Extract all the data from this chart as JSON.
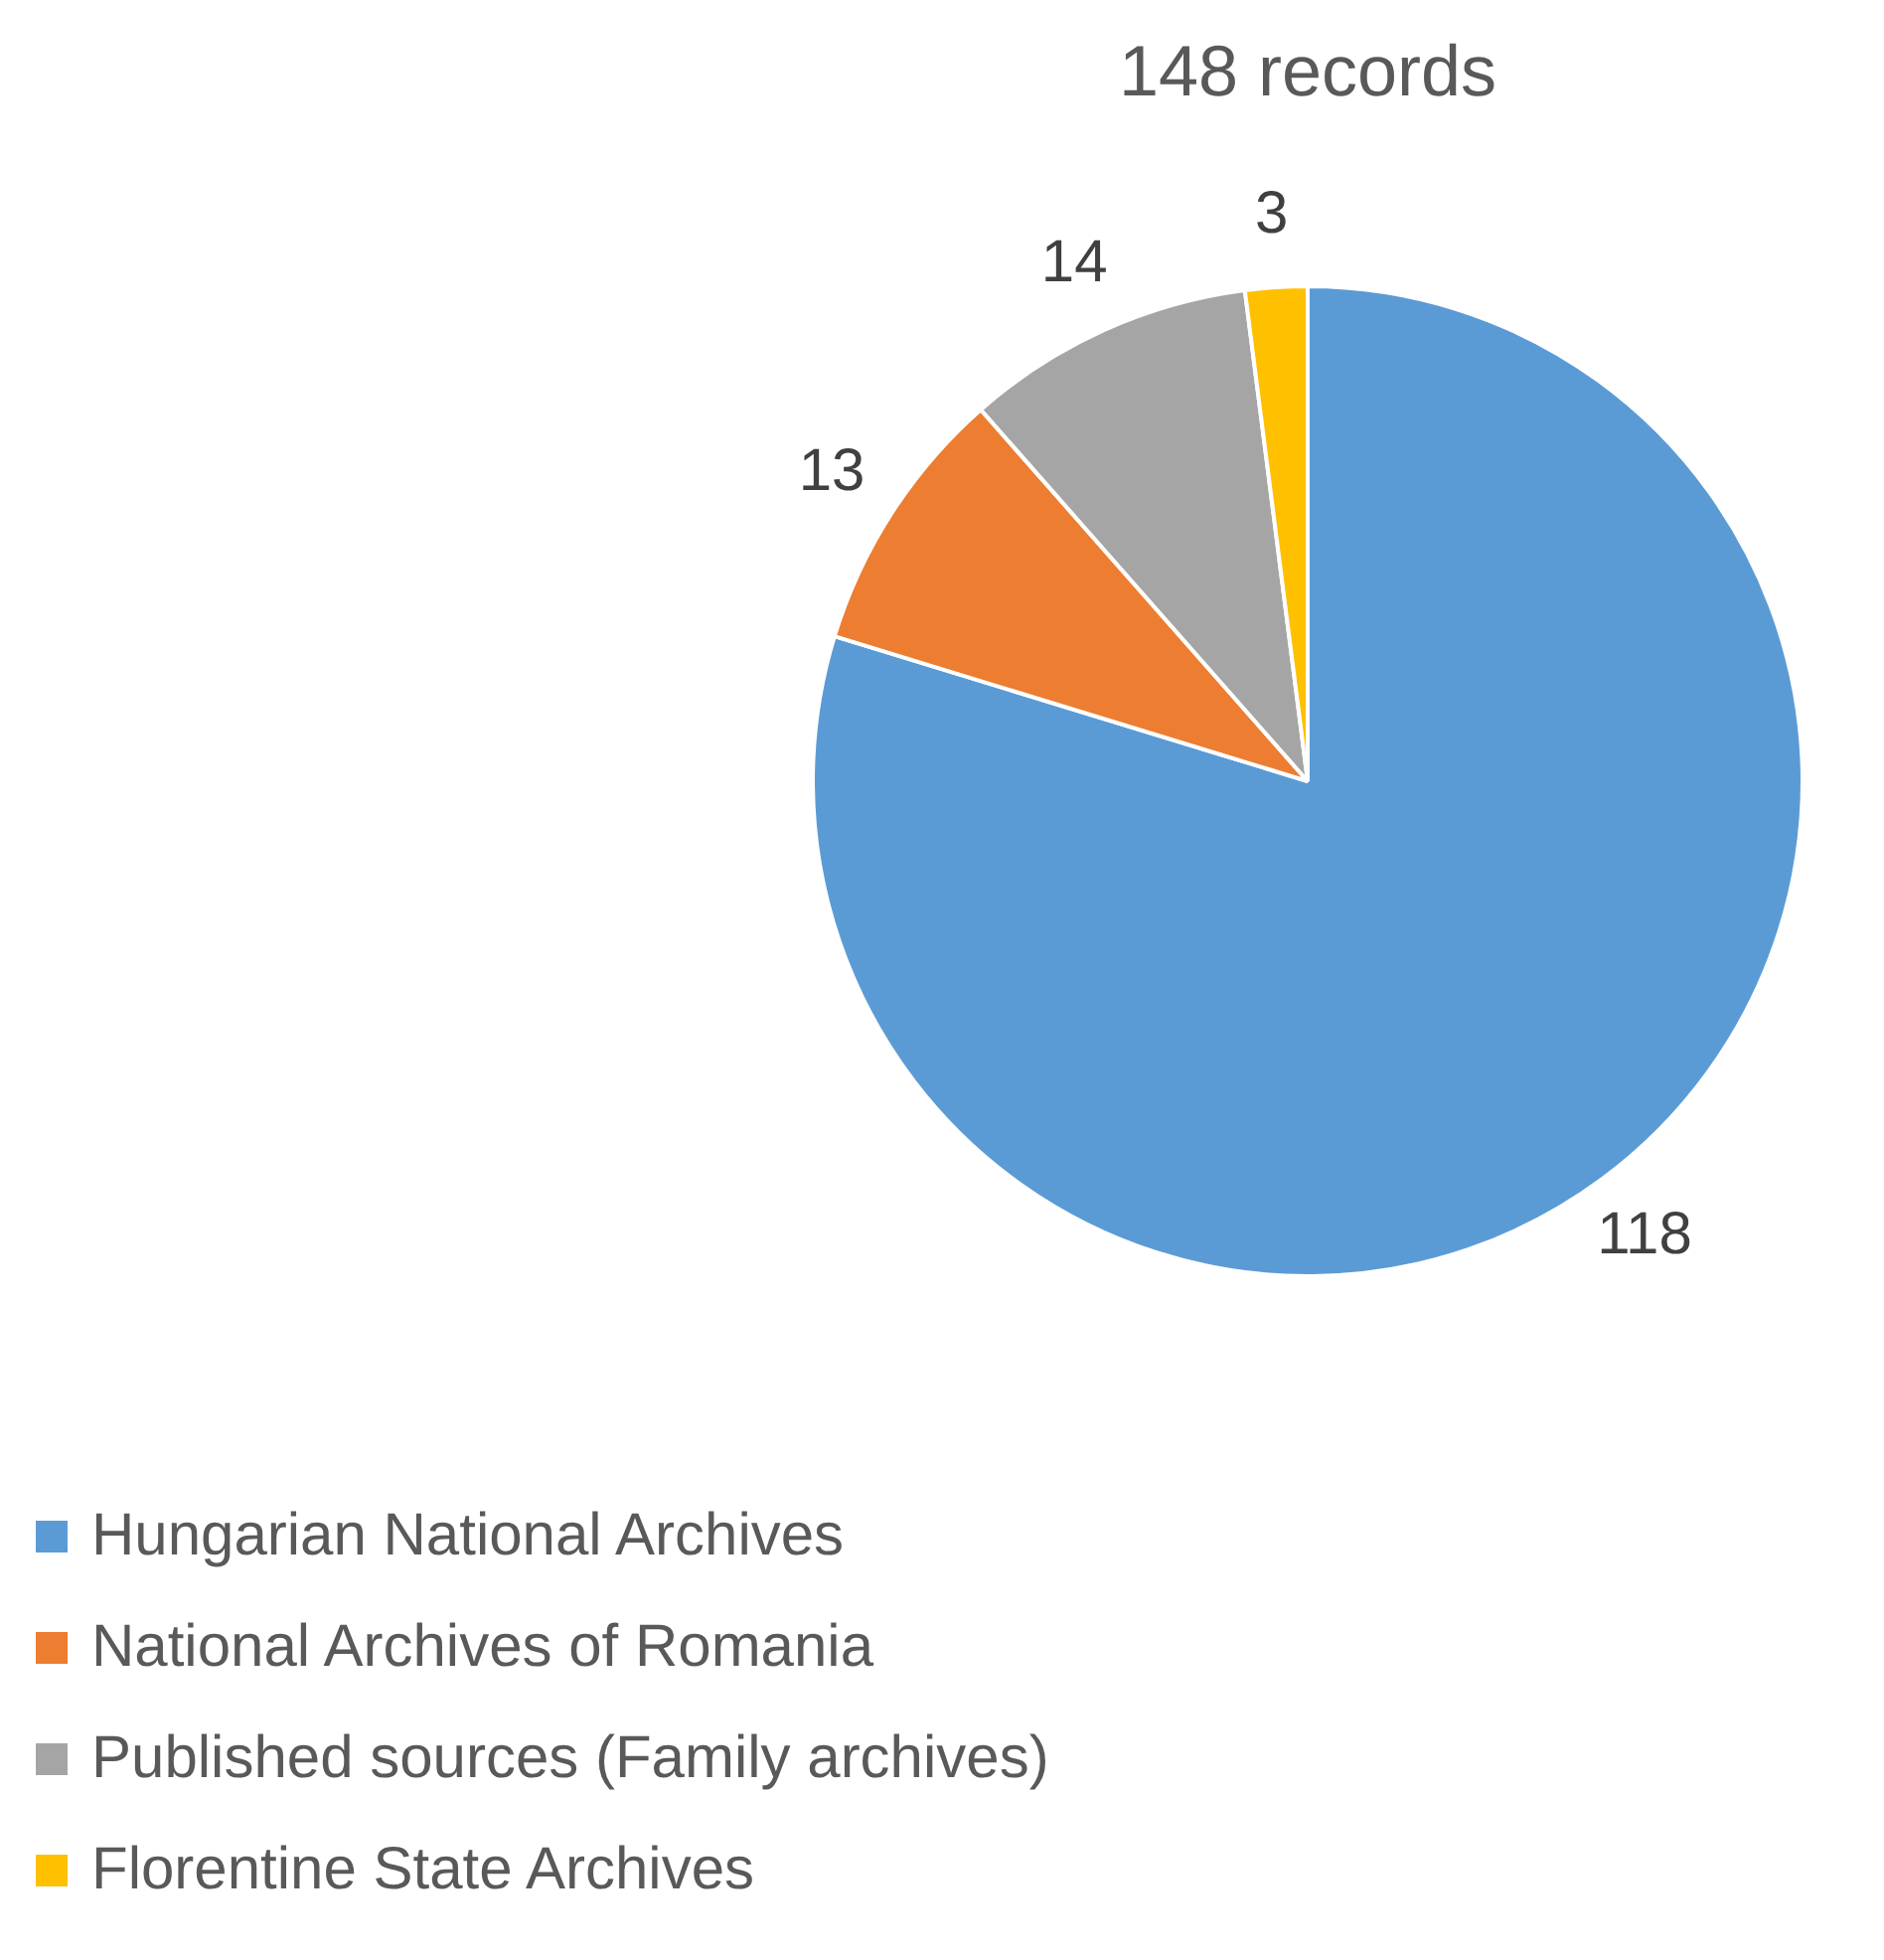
{
  "chart_data": {
    "type": "pie",
    "title": "148 records",
    "categories": [
      "Hungarian National Archives",
      "National Archives of Romania",
      "Published sources (Family archives)",
      "Florentine State Archives"
    ],
    "values": [
      118,
      13,
      14,
      3
    ],
    "colors": [
      "#5b9bd5",
      "#ed7d31",
      "#a5a5a5",
      "#ffc000"
    ],
    "data_labels": true,
    "legend": "bottom left"
  }
}
